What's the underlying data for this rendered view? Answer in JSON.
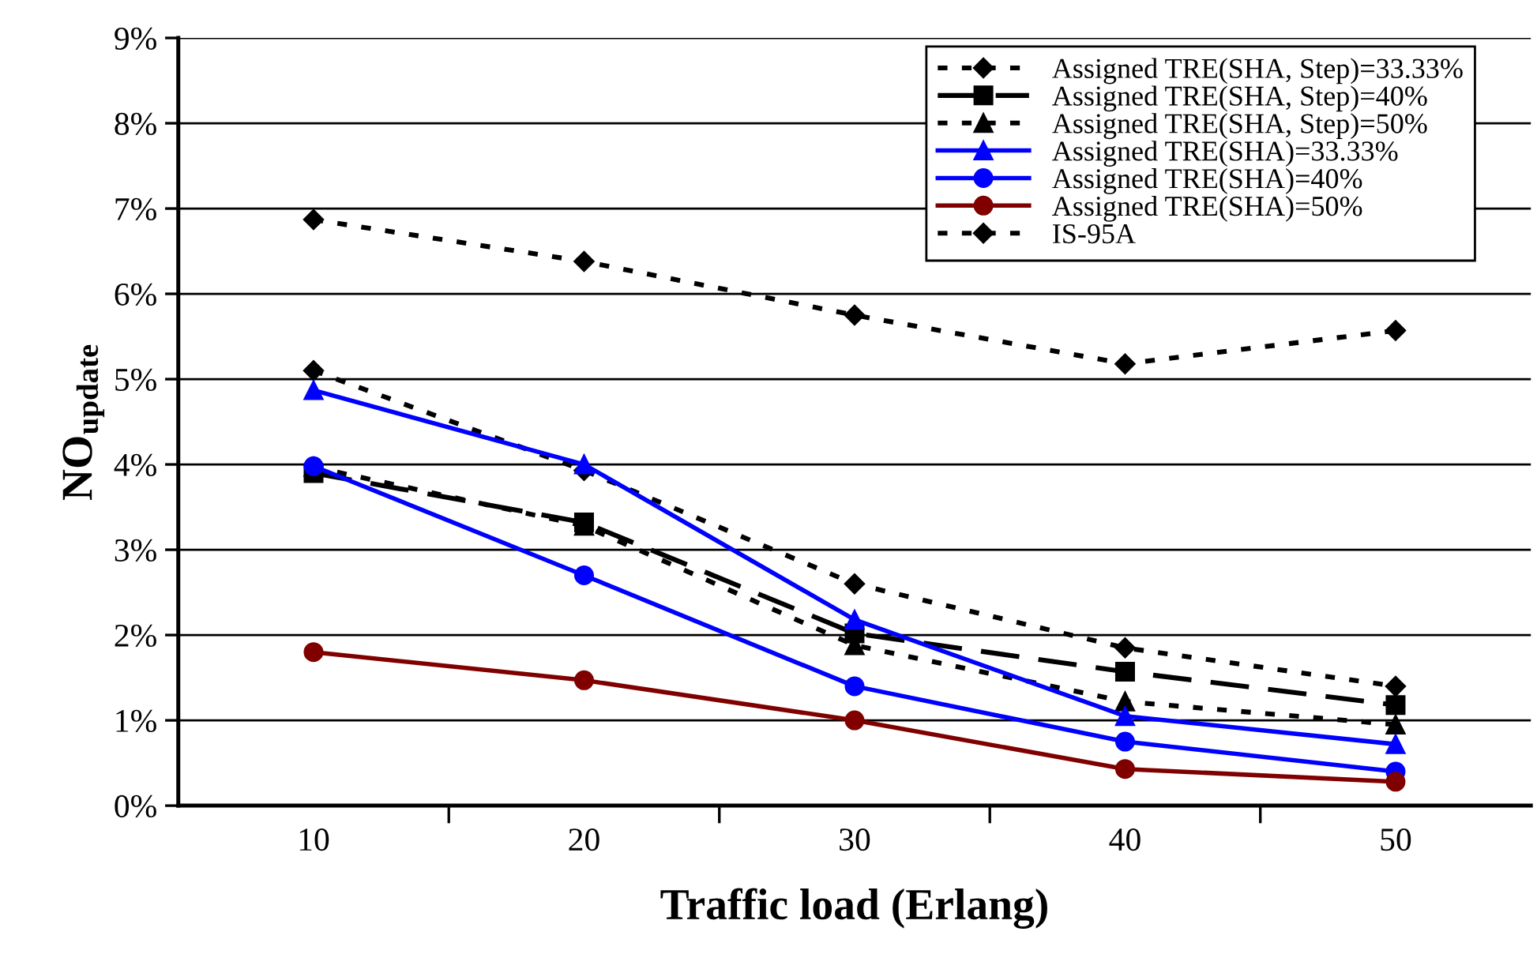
{
  "chart_data": {
    "type": "line",
    "xlabel": "Traffic load (Erlang)",
    "ylabel": "NO$_{update}$",
    "categories": [
      "10",
      "20",
      "30",
      "40",
      "50"
    ],
    "ylim": [
      0,
      9
    ],
    "yticks": [
      {
        "value": 0,
        "label": "0%"
      },
      {
        "value": 1,
        "label": "1%"
      },
      {
        "value": 2,
        "label": "2%"
      },
      {
        "value": 3,
        "label": "3%"
      },
      {
        "value": 4,
        "label": "4%"
      },
      {
        "value": 5,
        "label": "5%"
      },
      {
        "value": 6,
        "label": "6%"
      },
      {
        "value": 7,
        "label": "7%"
      },
      {
        "value": 8,
        "label": "8%"
      },
      {
        "value": 9,
        "label": "9%"
      }
    ],
    "grid": "y",
    "legend": "top right",
    "series": [
      {
        "name": "Assigned TRE(SHA, Step)=33.33%",
        "color": "#000000",
        "marker": "diamond",
        "line_style": "dotted",
        "values": [
          5.1,
          3.93,
          2.6,
          1.85,
          1.4
        ]
      },
      {
        "name": "Assigned TRE(SHA, Step)=40%",
        "color": "#000000",
        "marker": "square",
        "line_style": "dashed",
        "values": [
          3.9,
          3.32,
          2.02,
          1.57,
          1.18
        ]
      },
      {
        "name": "Assigned TRE(SHA, Step)=50%",
        "color": "#000000",
        "marker": "triangle",
        "line_style": "dotted",
        "values": [
          3.97,
          3.28,
          1.88,
          1.22,
          0.95
        ]
      },
      {
        "name": "Assigned TRE(SHA)=33.33%",
        "color": "#0000ff",
        "marker": "triangle",
        "line_style": "solid",
        "values": [
          4.87,
          4.0,
          2.18,
          1.05,
          0.72
        ]
      },
      {
        "name": "Assigned TRE(SHA)=40%",
        "color": "#0000ff",
        "marker": "circle",
        "line_style": "solid",
        "values": [
          3.98,
          2.7,
          1.4,
          0.75,
          0.4
        ]
      },
      {
        "name": "Assigned TRE(SHA)=50%",
        "color": "#800000",
        "marker": "circle",
        "line_style": "solid",
        "values": [
          1.8,
          1.47,
          1.0,
          0.43,
          0.28
        ]
      },
      {
        "name": "IS-95A",
        "color": "#000000",
        "marker": "diamond",
        "line_style": "dotted",
        "values": [
          6.87,
          6.38,
          5.75,
          5.18,
          5.57
        ]
      }
    ]
  }
}
